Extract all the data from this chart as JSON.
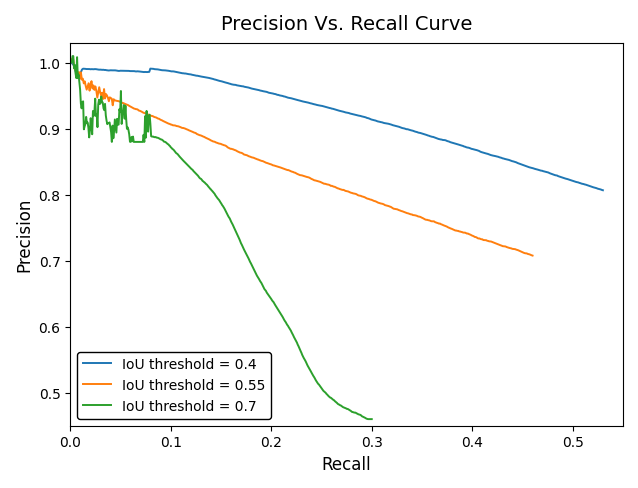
{
  "title": "Precision Vs. Recall Curve",
  "xlabel": "Recall",
  "ylabel": "Precision",
  "xlim": [
    0.0,
    0.55
  ],
  "ylim": [
    0.45,
    1.03
  ],
  "yticks": [
    0.5,
    0.6,
    0.7,
    0.8,
    0.9,
    1.0
  ],
  "xticks": [
    0.0,
    0.1,
    0.2,
    0.3,
    0.4,
    0.5
  ],
  "legend_labels": [
    "IoU threshold = 0.4",
    "IoU threshold = 0.55",
    "IoU threshold = 0.7"
  ],
  "line_colors": [
    "#1f77b4",
    "#ff7f0e",
    "#2ca02c"
  ],
  "background_color": "#ffffff",
  "title_fontsize": 14,
  "axis_label_fontsize": 12,
  "legend_fontsize": 10
}
